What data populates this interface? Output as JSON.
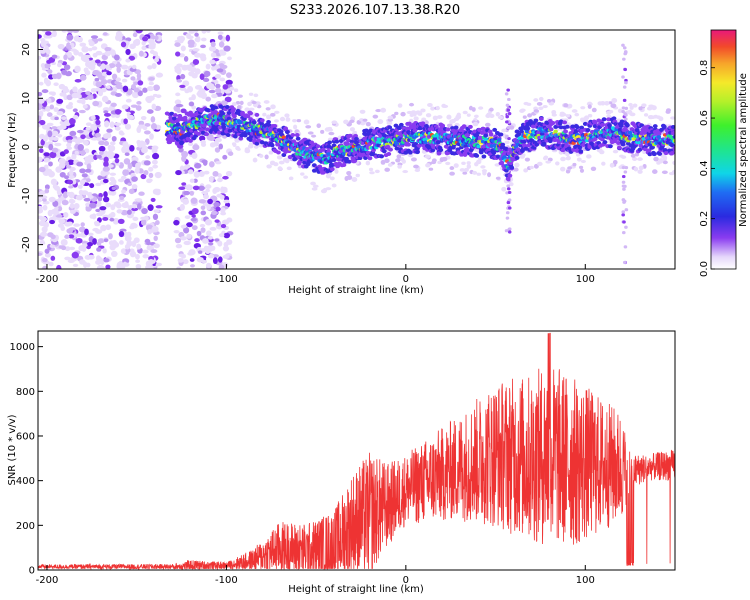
{
  "title": "S233.2026.107.13.38.R20",
  "chart_data": [
    {
      "type": "heatmap",
      "xlabel": "Height of straight line (km)",
      "ylabel": "Frequency (Hz)",
      "xlim": [
        -205,
        150
      ],
      "ylim": [
        -25,
        24
      ],
      "x_ticks": [
        "-200",
        "-100",
        "0",
        "100"
      ],
      "y_ticks": [
        "20",
        "10",
        "0",
        "-10",
        "-20"
      ],
      "colorbar_label": "Normalized spectral amplitude",
      "colorbar_ticks": [
        "0.0",
        "0.2",
        "0.4",
        "0.6",
        "0.8"
      ],
      "colorbar_range": [
        0,
        0.95
      ],
      "ridge": [
        {
          "x": -133,
          "f": 4
        },
        {
          "x": -125,
          "f": 3.5
        },
        {
          "x": -115,
          "f": 5
        },
        {
          "x": -105,
          "f": 6
        },
        {
          "x": -95,
          "f": 5
        },
        {
          "x": -85,
          "f": 4
        },
        {
          "x": -75,
          "f": 2.5
        },
        {
          "x": -65,
          "f": 0.5
        },
        {
          "x": -55,
          "f": -1.5
        },
        {
          "x": -45,
          "f": -2.5
        },
        {
          "x": -38,
          "f": -1
        },
        {
          "x": -30,
          "f": -0.5
        },
        {
          "x": -22,
          "f": 0.5
        },
        {
          "x": -15,
          "f": 1
        },
        {
          "x": -5,
          "f": 1.5
        },
        {
          "x": 5,
          "f": 2
        },
        {
          "x": 15,
          "f": 1.8
        },
        {
          "x": 25,
          "f": 1.5
        },
        {
          "x": 35,
          "f": 1.2
        },
        {
          "x": 45,
          "f": 1
        },
        {
          "x": 52,
          "f": 0.5
        },
        {
          "x": 57,
          "f": -4
        },
        {
          "x": 60,
          "f": -1
        },
        {
          "x": 65,
          "f": 2
        },
        {
          "x": 75,
          "f": 3
        },
        {
          "x": 85,
          "f": 2.5
        },
        {
          "x": 95,
          "f": 1.5
        },
        {
          "x": 105,
          "f": 2.5
        },
        {
          "x": 115,
          "f": 3
        },
        {
          "x": 125,
          "f": 2
        },
        {
          "x": 135,
          "f": 1.5
        },
        {
          "x": 150,
          "f": 1.5
        }
      ]
    },
    {
      "type": "line",
      "xlabel": "Height of straight line (km)",
      "ylabel": "SNR (10 * v/v)",
      "xlim": [
        -205,
        150
      ],
      "ylim": [
        0,
        1070
      ],
      "x_ticks": [
        "-200",
        "-100",
        "0",
        "100"
      ],
      "y_ticks": [
        "0",
        "200",
        "400",
        "600",
        "800",
        "1000"
      ],
      "color": "#ee3333",
      "envelope": [
        {
          "x": -205,
          "base": 15,
          "amp": 10
        },
        {
          "x": -130,
          "base": 15,
          "amp": 12
        },
        {
          "x": -120,
          "base": 20,
          "amp": 25
        },
        {
          "x": -100,
          "base": 20,
          "amp": 15
        },
        {
          "x": -85,
          "base": 45,
          "amp": 50
        },
        {
          "x": -70,
          "base": 100,
          "amp": 120
        },
        {
          "x": -55,
          "base": 90,
          "amp": 120
        },
        {
          "x": -40,
          "base": 110,
          "amp": 160
        },
        {
          "x": -30,
          "base": 200,
          "amp": 240
        },
        {
          "x": -20,
          "base": 250,
          "amp": 280
        },
        {
          "x": -10,
          "base": 290,
          "amp": 190
        },
        {
          "x": 0,
          "base": 360,
          "amp": 160
        },
        {
          "x": 15,
          "base": 410,
          "amp": 200
        },
        {
          "x": 30,
          "base": 460,
          "amp": 240
        },
        {
          "x": 50,
          "base": 520,
          "amp": 330
        },
        {
          "x": 70,
          "base": 500,
          "amp": 380
        },
        {
          "x": 80,
          "base": 520,
          "amp": 420
        },
        {
          "x": 95,
          "base": 480,
          "amp": 380
        },
        {
          "x": 110,
          "base": 470,
          "amp": 300
        },
        {
          "x": 120,
          "base": 460,
          "amp": 250
        },
        {
          "x": 125,
          "base": 440,
          "amp": 80
        },
        {
          "x": 135,
          "base": 460,
          "amp": 60
        },
        {
          "x": 150,
          "base": 470,
          "amp": 70
        }
      ]
    }
  ]
}
